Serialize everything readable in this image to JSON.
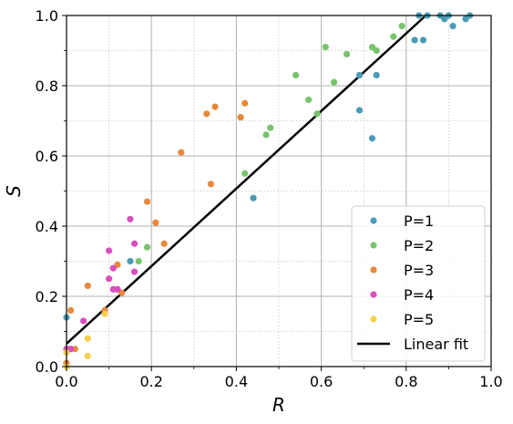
{
  "chart_data": {
    "type": "scatter",
    "title": "",
    "xlabel": "R",
    "ylabel": "S",
    "xlim": [
      0.0,
      1.0
    ],
    "ylim": [
      0.0,
      1.0
    ],
    "x_ticks": [
      "0.0",
      "0.2",
      "0.4",
      "0.6",
      "0.8",
      "1.0"
    ],
    "y_ticks": [
      "0.0",
      "0.2",
      "0.4",
      "0.6",
      "0.8",
      "1.0"
    ],
    "grid": true,
    "legend_position": "bottom-right",
    "series": [
      {
        "name": "P=1",
        "color": "#4a9bb5",
        "points": [
          [
            0.0,
            0.14
          ],
          [
            0.15,
            0.3
          ],
          [
            0.44,
            0.48
          ],
          [
            0.69,
            0.83
          ],
          [
            0.69,
            0.73
          ],
          [
            0.72,
            0.65
          ],
          [
            0.73,
            0.83
          ],
          [
            0.82,
            0.93
          ],
          [
            0.83,
            1.0
          ],
          [
            0.84,
            0.93
          ],
          [
            0.85,
            1.0
          ],
          [
            0.88,
            1.0
          ],
          [
            0.89,
            0.99
          ],
          [
            0.9,
            1.0
          ],
          [
            0.91,
            0.97
          ],
          [
            0.94,
            0.99
          ],
          [
            0.95,
            1.0
          ]
        ]
      },
      {
        "name": "P=2",
        "color": "#78c46b",
        "points": [
          [
            0.12,
            0.22
          ],
          [
            0.17,
            0.3
          ],
          [
            0.19,
            0.34
          ],
          [
            0.42,
            0.55
          ],
          [
            0.47,
            0.66
          ],
          [
            0.48,
            0.68
          ],
          [
            0.54,
            0.83
          ],
          [
            0.57,
            0.76
          ],
          [
            0.59,
            0.72
          ],
          [
            0.61,
            0.91
          ],
          [
            0.63,
            0.81
          ],
          [
            0.66,
            0.89
          ],
          [
            0.72,
            0.91
          ],
          [
            0.73,
            0.9
          ],
          [
            0.77,
            0.94
          ],
          [
            0.79,
            0.97
          ]
        ]
      },
      {
        "name": "P=3",
        "color": "#e8883a",
        "points": [
          [
            0.0,
            0.01
          ],
          [
            0.0,
            0.05
          ],
          [
            0.01,
            0.16
          ],
          [
            0.02,
            0.05
          ],
          [
            0.05,
            0.23
          ],
          [
            0.09,
            0.16
          ],
          [
            0.12,
            0.29
          ],
          [
            0.13,
            0.21
          ],
          [
            0.19,
            0.47
          ],
          [
            0.21,
            0.41
          ],
          [
            0.23,
            0.35
          ],
          [
            0.27,
            0.61
          ],
          [
            0.33,
            0.72
          ],
          [
            0.34,
            0.52
          ],
          [
            0.35,
            0.74
          ],
          [
            0.41,
            0.71
          ],
          [
            0.42,
            0.75
          ]
        ]
      },
      {
        "name": "P=4",
        "color": "#d94fbf",
        "points": [
          [
            0.0,
            0.05
          ],
          [
            0.01,
            0.05
          ],
          [
            0.04,
            0.13
          ],
          [
            0.1,
            0.33
          ],
          [
            0.1,
            0.25
          ],
          [
            0.11,
            0.22
          ],
          [
            0.11,
            0.28
          ],
          [
            0.12,
            0.22
          ],
          [
            0.15,
            0.42
          ],
          [
            0.16,
            0.35
          ],
          [
            0.16,
            0.27
          ]
        ]
      },
      {
        "name": "P=5",
        "color": "#f7cf4f",
        "points": [
          [
            0.0,
            0.0
          ],
          [
            0.0,
            0.04
          ],
          [
            0.05,
            0.08
          ],
          [
            0.05,
            0.03
          ],
          [
            0.09,
            0.15
          ]
        ]
      }
    ],
    "fit": {
      "name": "Linear fit",
      "color": "#000000",
      "intercept": 0.065,
      "slope": 1.105
    }
  }
}
